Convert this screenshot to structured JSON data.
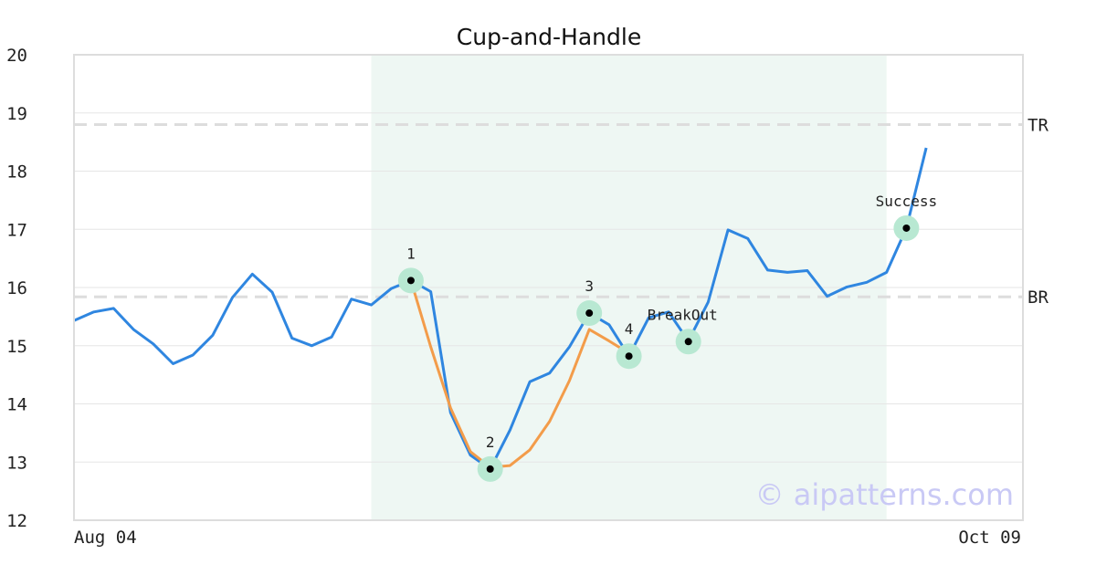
{
  "watermark": "© aipatterns.com",
  "colors": {
    "price": "#2f86e0",
    "pattern": "#f39c4a",
    "zone": "#eef7f3",
    "marker_halo": "#b8e8d2",
    "marker_dot": "#000000",
    "grid": "#e6e6e6",
    "refline": "#dddddd",
    "frame": "#dddddd"
  },
  "chart_data": {
    "type": "line",
    "title": "Cup-and-Handle",
    "xlabel": "",
    "ylabel": "",
    "x_range": [
      "Aug 04",
      "Oct 09"
    ],
    "x_tick_labels": [
      "Aug 04",
      "Oct 09"
    ],
    "ylim": [
      12,
      20
    ],
    "y_ticks": [
      12,
      13,
      14,
      15,
      16,
      17,
      18,
      19,
      20
    ],
    "grid": true,
    "series": [
      {
        "role": "price",
        "values": [
          15.43,
          15.58,
          15.64,
          15.28,
          15.03,
          14.69,
          14.84,
          15.18,
          15.83,
          16.23,
          15.92,
          15.13,
          15.0,
          15.15,
          15.8,
          15.7,
          15.98,
          16.12,
          15.93,
          13.85,
          13.12,
          12.88,
          13.55,
          14.38,
          14.53,
          14.98,
          15.56,
          15.36,
          14.82,
          15.48,
          15.58,
          15.08,
          15.75,
          16.99,
          16.84,
          16.3,
          16.26,
          16.29,
          15.85,
          16.01,
          16.09,
          16.26,
          17.02,
          18.4
        ]
      },
      {
        "role": "pattern",
        "start_index": 17,
        "values": [
          16.12,
          14.98,
          13.93,
          13.18,
          12.91,
          12.94,
          13.21,
          13.7,
          14.4,
          15.28,
          15.08,
          14.87
        ]
      }
    ],
    "reference_lines": [
      {
        "label": "TR",
        "value": 18.8
      },
      {
        "label": "BR",
        "value": 15.84
      }
    ],
    "highlight_range": {
      "start_index": 15,
      "end_index": 41
    },
    "markers": [
      {
        "label": "1",
        "index": 17,
        "value": 16.12
      },
      {
        "label": "2",
        "index": 21,
        "value": 12.88
      },
      {
        "label": "3",
        "index": 26,
        "value": 15.56
      },
      {
        "label": "4",
        "index": 28,
        "value": 14.82
      },
      {
        "label": "BreakOut",
        "index": 31,
        "value": 15.07
      },
      {
        "label": "Success",
        "index": 42,
        "value": 17.02
      }
    ]
  }
}
